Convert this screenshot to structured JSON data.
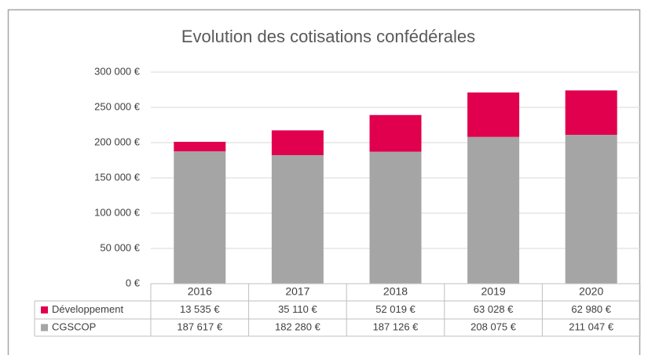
{
  "chart_data": {
    "type": "stacked_bar",
    "title": "Evolution des cotisations confédérales",
    "categories": [
      "2016",
      "2017",
      "2018",
      "2019",
      "2020"
    ],
    "series": [
      {
        "name": "Développement",
        "color": "#e0004d",
        "values": [
          13535,
          35110,
          52019,
          63028,
          62980
        ],
        "value_labels": [
          "13 535 €",
          "35 110 €",
          "52 019 €",
          "63 028 €",
          "62 980 €"
        ]
      },
      {
        "name": "CGSCOP",
        "color": "#a5a5a5",
        "values": [
          187617,
          182280,
          187126,
          208075,
          211047
        ],
        "value_labels": [
          "187 617 €",
          "182 280 €",
          "187 126 €",
          "208 075 €",
          "211 047 €"
        ]
      }
    ],
    "ylim": [
      0,
      300000
    ],
    "yticks": [
      {
        "value": 0,
        "label": "0 €"
      },
      {
        "value": 50000,
        "label": "50 000 €"
      },
      {
        "value": 100000,
        "label": "100 000 €"
      },
      {
        "value": 150000,
        "label": "150 000 €"
      },
      {
        "value": 200000,
        "label": "200 000 €"
      },
      {
        "value": 250000,
        "label": "250 000 €"
      },
      {
        "value": 300000,
        "label": "300 000 €"
      }
    ],
    "grid": true
  }
}
